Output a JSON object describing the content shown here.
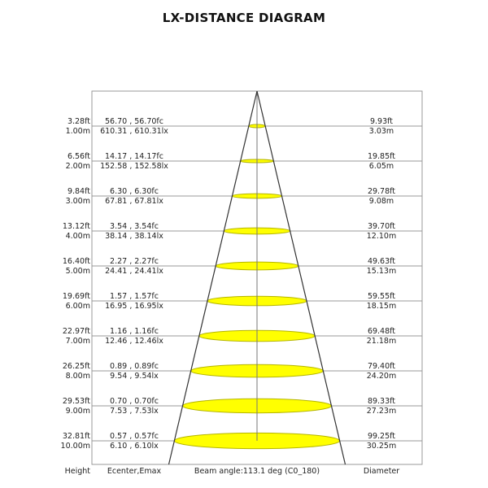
{
  "title": "LX-DISTANCE DIAGRAM",
  "footer": {
    "height_label": "Height",
    "illuminance_label": "Ecenter,Emax",
    "beam_label": "Beam angle:113.1 deg (C0_180)",
    "diameter_label": "Diameter"
  },
  "colors": {
    "spot": "#ffff00",
    "spot_outline": "#b5b500",
    "grid": "#999999",
    "beam": "#333333"
  },
  "rows": [
    {
      "height_ft": "3.28ft",
      "height_m": "1.00m",
      "fc": "56.70 , 56.70fc",
      "lx": "610.31 , 610.31lx",
      "diam_ft": "9.93ft",
      "diam_m": "3.03m"
    },
    {
      "height_ft": "6.56ft",
      "height_m": "2.00m",
      "fc": "14.17 , 14.17fc",
      "lx": "152.58 , 152.58lx",
      "diam_ft": "19.85ft",
      "diam_m": "6.05m"
    },
    {
      "height_ft": "9.84ft",
      "height_m": "3.00m",
      "fc": "6.30 , 6.30fc",
      "lx": "67.81 , 67.81lx",
      "diam_ft": "29.78ft",
      "diam_m": "9.08m"
    },
    {
      "height_ft": "13.12ft",
      "height_m": "4.00m",
      "fc": "3.54 , 3.54fc",
      "lx": "38.14 , 38.14lx",
      "diam_ft": "39.70ft",
      "diam_m": "12.10m"
    },
    {
      "height_ft": "16.40ft",
      "height_m": "5.00m",
      "fc": "2.27 , 2.27fc",
      "lx": "24.41 , 24.41lx",
      "diam_ft": "49.63ft",
      "diam_m": "15.13m"
    },
    {
      "height_ft": "19.69ft",
      "height_m": "6.00m",
      "fc": "1.57 , 1.57fc",
      "lx": "16.95 , 16.95lx",
      "diam_ft": "59.55ft",
      "diam_m": "18.15m"
    },
    {
      "height_ft": "22.97ft",
      "height_m": "7.00m",
      "fc": "1.16 , 1.16fc",
      "lx": "12.46 , 12.46lx",
      "diam_ft": "69.48ft",
      "diam_m": "21.18m"
    },
    {
      "height_ft": "26.25ft",
      "height_m": "8.00m",
      "fc": "0.89 , 0.89fc",
      "lx": "9.54 , 9.54lx",
      "diam_ft": "79.40ft",
      "diam_m": "24.20m"
    },
    {
      "height_ft": "29.53ft",
      "height_m": "9.00m",
      "fc": "0.70 , 0.70fc",
      "lx": "7.53 , 7.53lx",
      "diam_ft": "89.33ft",
      "diam_m": "27.23m"
    },
    {
      "height_ft": "32.81ft",
      "height_m": "10.00m",
      "fc": "0.57 , 0.57fc",
      "lx": "6.10 , 6.10lx",
      "diam_ft": "99.25ft",
      "diam_m": "30.25m"
    }
  ]
}
